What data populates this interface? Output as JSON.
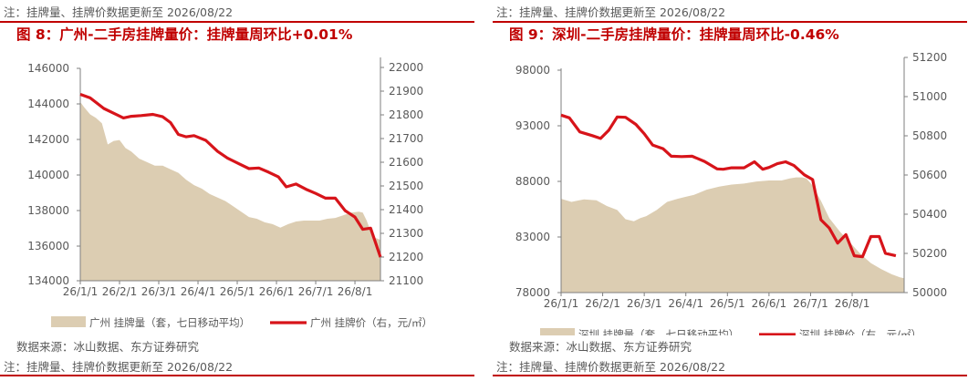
{
  "panels": [
    {
      "note_top": "注：挂牌量、挂牌价数据更新至 2026/08/22",
      "title": "图 8：广州-二手房挂牌量价：挂牌量周环比+0.01%",
      "source": "数据来源：冰山数据、东方证券研究",
      "note_bottom": "注：挂牌量、挂牌价数据更新至 2026/08/22"
    },
    {
      "note_top": "注：挂牌量、挂牌价数据更新至 2026/08/22",
      "title": "图 9：深圳-二手房挂牌量价：挂牌量周环比-0.46%",
      "source": "数据来源：冰山数据、东方证券研究",
      "note_bottom": "注：挂牌量、挂牌价数据更新至 2026/08/22"
    }
  ],
  "chart_data": [
    {
      "type": "area+line",
      "categories": [
        "26/1/1",
        "26/2/1",
        "26/3/1",
        "26/4/1",
        "26/5/1",
        "26/6/1",
        "26/7/1",
        "26/8/1"
      ],
      "y_left": {
        "range": [
          134000,
          146000
        ],
        "ticks": [
          "146000",
          "144000",
          "142000",
          "140000",
          "138000",
          "136000",
          "134000"
        ]
      },
      "y_right": {
        "range": [
          21100,
          22000
        ],
        "ticks": [
          "22000",
          "21900",
          "21800",
          "21700",
          "21600",
          "21500",
          "21400",
          "21300",
          "21200",
          "21100"
        ]
      },
      "legend_position": "bottom",
      "colors": {
        "area": "#dccdb2",
        "line": "#d7141a"
      },
      "series": [
        {
          "name": "广州 挂牌量（套，七日移动平均）",
          "axis": "left",
          "kind": "area",
          "x": [
            0,
            0.1,
            0.25,
            0.4,
            0.55,
            0.7,
            0.85,
            1.0,
            1.05,
            1.15,
            1.3,
            1.5,
            1.7,
            1.9,
            2.1,
            2.3,
            2.5,
            2.7,
            2.9,
            3.1,
            3.3,
            3.5,
            3.7,
            3.9,
            4.1,
            4.3,
            4.5,
            4.7,
            4.9,
            5.1,
            5.3,
            5.5,
            5.7,
            5.9,
            6.1,
            6.3,
            6.5,
            6.7,
            6.9,
            7.1,
            7.2,
            7.3,
            7.4,
            7.5,
            7.55,
            7.65
          ],
          "y": [
            144100,
            143800,
            143400,
            143200,
            142900,
            141700,
            141900,
            141950,
            141800,
            141500,
            141300,
            140900,
            140700,
            140500,
            140500,
            140300,
            140100,
            139700,
            139400,
            139200,
            138900,
            138700,
            138500,
            138200,
            137900,
            137600,
            137500,
            137300,
            137200,
            137000,
            137200,
            137350,
            137400,
            137400,
            137400,
            137500,
            137550,
            137700,
            137850,
            137900,
            137850,
            137400,
            136800,
            136400,
            136400,
            136300
          ]
        },
        {
          "name": "广州 挂牌价（右，元/㎡）",
          "axis": "right",
          "kind": "line",
          "x": [
            0,
            0.25,
            0.6,
            1.1,
            1.3,
            1.55,
            1.85,
            2.1,
            2.3,
            2.5,
            2.7,
            2.9,
            3.2,
            3.5,
            3.75,
            4.05,
            4.3,
            4.55,
            4.8,
            5.05,
            5.25,
            5.5,
            5.75,
            6.0,
            6.25,
            6.5,
            6.75,
            7.0,
            7.2,
            7.4,
            7.65
          ],
          "y": [
            21890,
            21875,
            21830,
            21790,
            21797,
            21800,
            21805,
            21795,
            21770,
            21720,
            21710,
            21715,
            21695,
            21648,
            21620,
            21595,
            21575,
            21578,
            21560,
            21540,
            21498,
            21510,
            21488,
            21470,
            21450,
            21450,
            21397,
            21370,
            21318,
            21323,
            21200
          ]
        }
      ]
    },
    {
      "type": "area+line",
      "categories": [
        "26/1/1",
        "26/2/1",
        "26/3/1",
        "26/4/1",
        "26/5/1",
        "26/6/1",
        "26/7/1",
        "26/8/1"
      ],
      "y_left": {
        "range": [
          78000,
          100000
        ],
        "ticks": [
          "98000",
          "93000",
          "88000",
          "83000",
          "78000"
        ]
      },
      "y_right": {
        "range": [
          50000,
          51200
        ],
        "ticks": [
          "51200",
          "51000",
          "50800",
          "50600",
          "50400",
          "50200",
          "50000"
        ]
      },
      "legend_position": "bottom",
      "colors": {
        "area": "#dccdb2",
        "line": "#d7141a"
      },
      "series": [
        {
          "name": "深圳 挂牌量（套，七日移动平均）",
          "axis": "left",
          "kind": "area",
          "x": [
            0,
            0.25,
            0.55,
            0.85,
            1.1,
            1.35,
            1.55,
            1.75,
            1.9,
            2.05,
            2.3,
            2.55,
            2.8,
            3.0,
            3.2,
            3.5,
            3.8,
            4.1,
            4.4,
            4.7,
            5.0,
            5.3,
            5.5,
            5.65,
            5.8,
            5.9,
            6.05,
            6.25,
            6.45,
            6.7,
            6.95,
            7.2,
            7.45,
            7.7,
            7.95,
            8.15,
            8.25
          ],
          "y": [
            87200,
            86900,
            87150,
            87050,
            86500,
            86100,
            85200,
            85000,
            85300,
            85500,
            86100,
            86900,
            87200,
            87400,
            87600,
            88100,
            88400,
            88600,
            88700,
            88900,
            89000,
            89000,
            89200,
            89300,
            89300,
            89200,
            88500,
            87000,
            85300,
            84000,
            82900,
            81800,
            80900,
            80300,
            79800,
            79500,
            79400
          ]
        },
        {
          "name": "深圳 挂牌价（右，元/㎡）",
          "axis": "right",
          "kind": "line",
          "x": [
            0,
            0.2,
            0.45,
            0.75,
            0.95,
            1.15,
            1.35,
            1.55,
            1.8,
            2.0,
            2.2,
            2.45,
            2.65,
            2.9,
            3.15,
            3.45,
            3.75,
            3.9,
            4.1,
            4.4,
            4.65,
            4.85,
            5.0,
            5.2,
            5.4,
            5.6,
            5.85,
            6.05,
            6.25,
            6.45,
            6.65,
            6.85,
            7.05,
            7.25,
            7.45,
            7.65,
            7.8,
            8.05
          ],
          "y": [
            50950,
            50935,
            50860,
            50840,
            50825,
            50870,
            50940,
            50938,
            50900,
            50850,
            50790,
            50770,
            50730,
            50728,
            50730,
            50702,
            50662,
            50660,
            50668,
            50668,
            50700,
            50660,
            50670,
            50690,
            50700,
            50680,
            50630,
            50605,
            50390,
            50345,
            50265,
            50310,
            50197,
            50192,
            50300,
            50300,
            50210,
            50197
          ]
        }
      ]
    }
  ]
}
